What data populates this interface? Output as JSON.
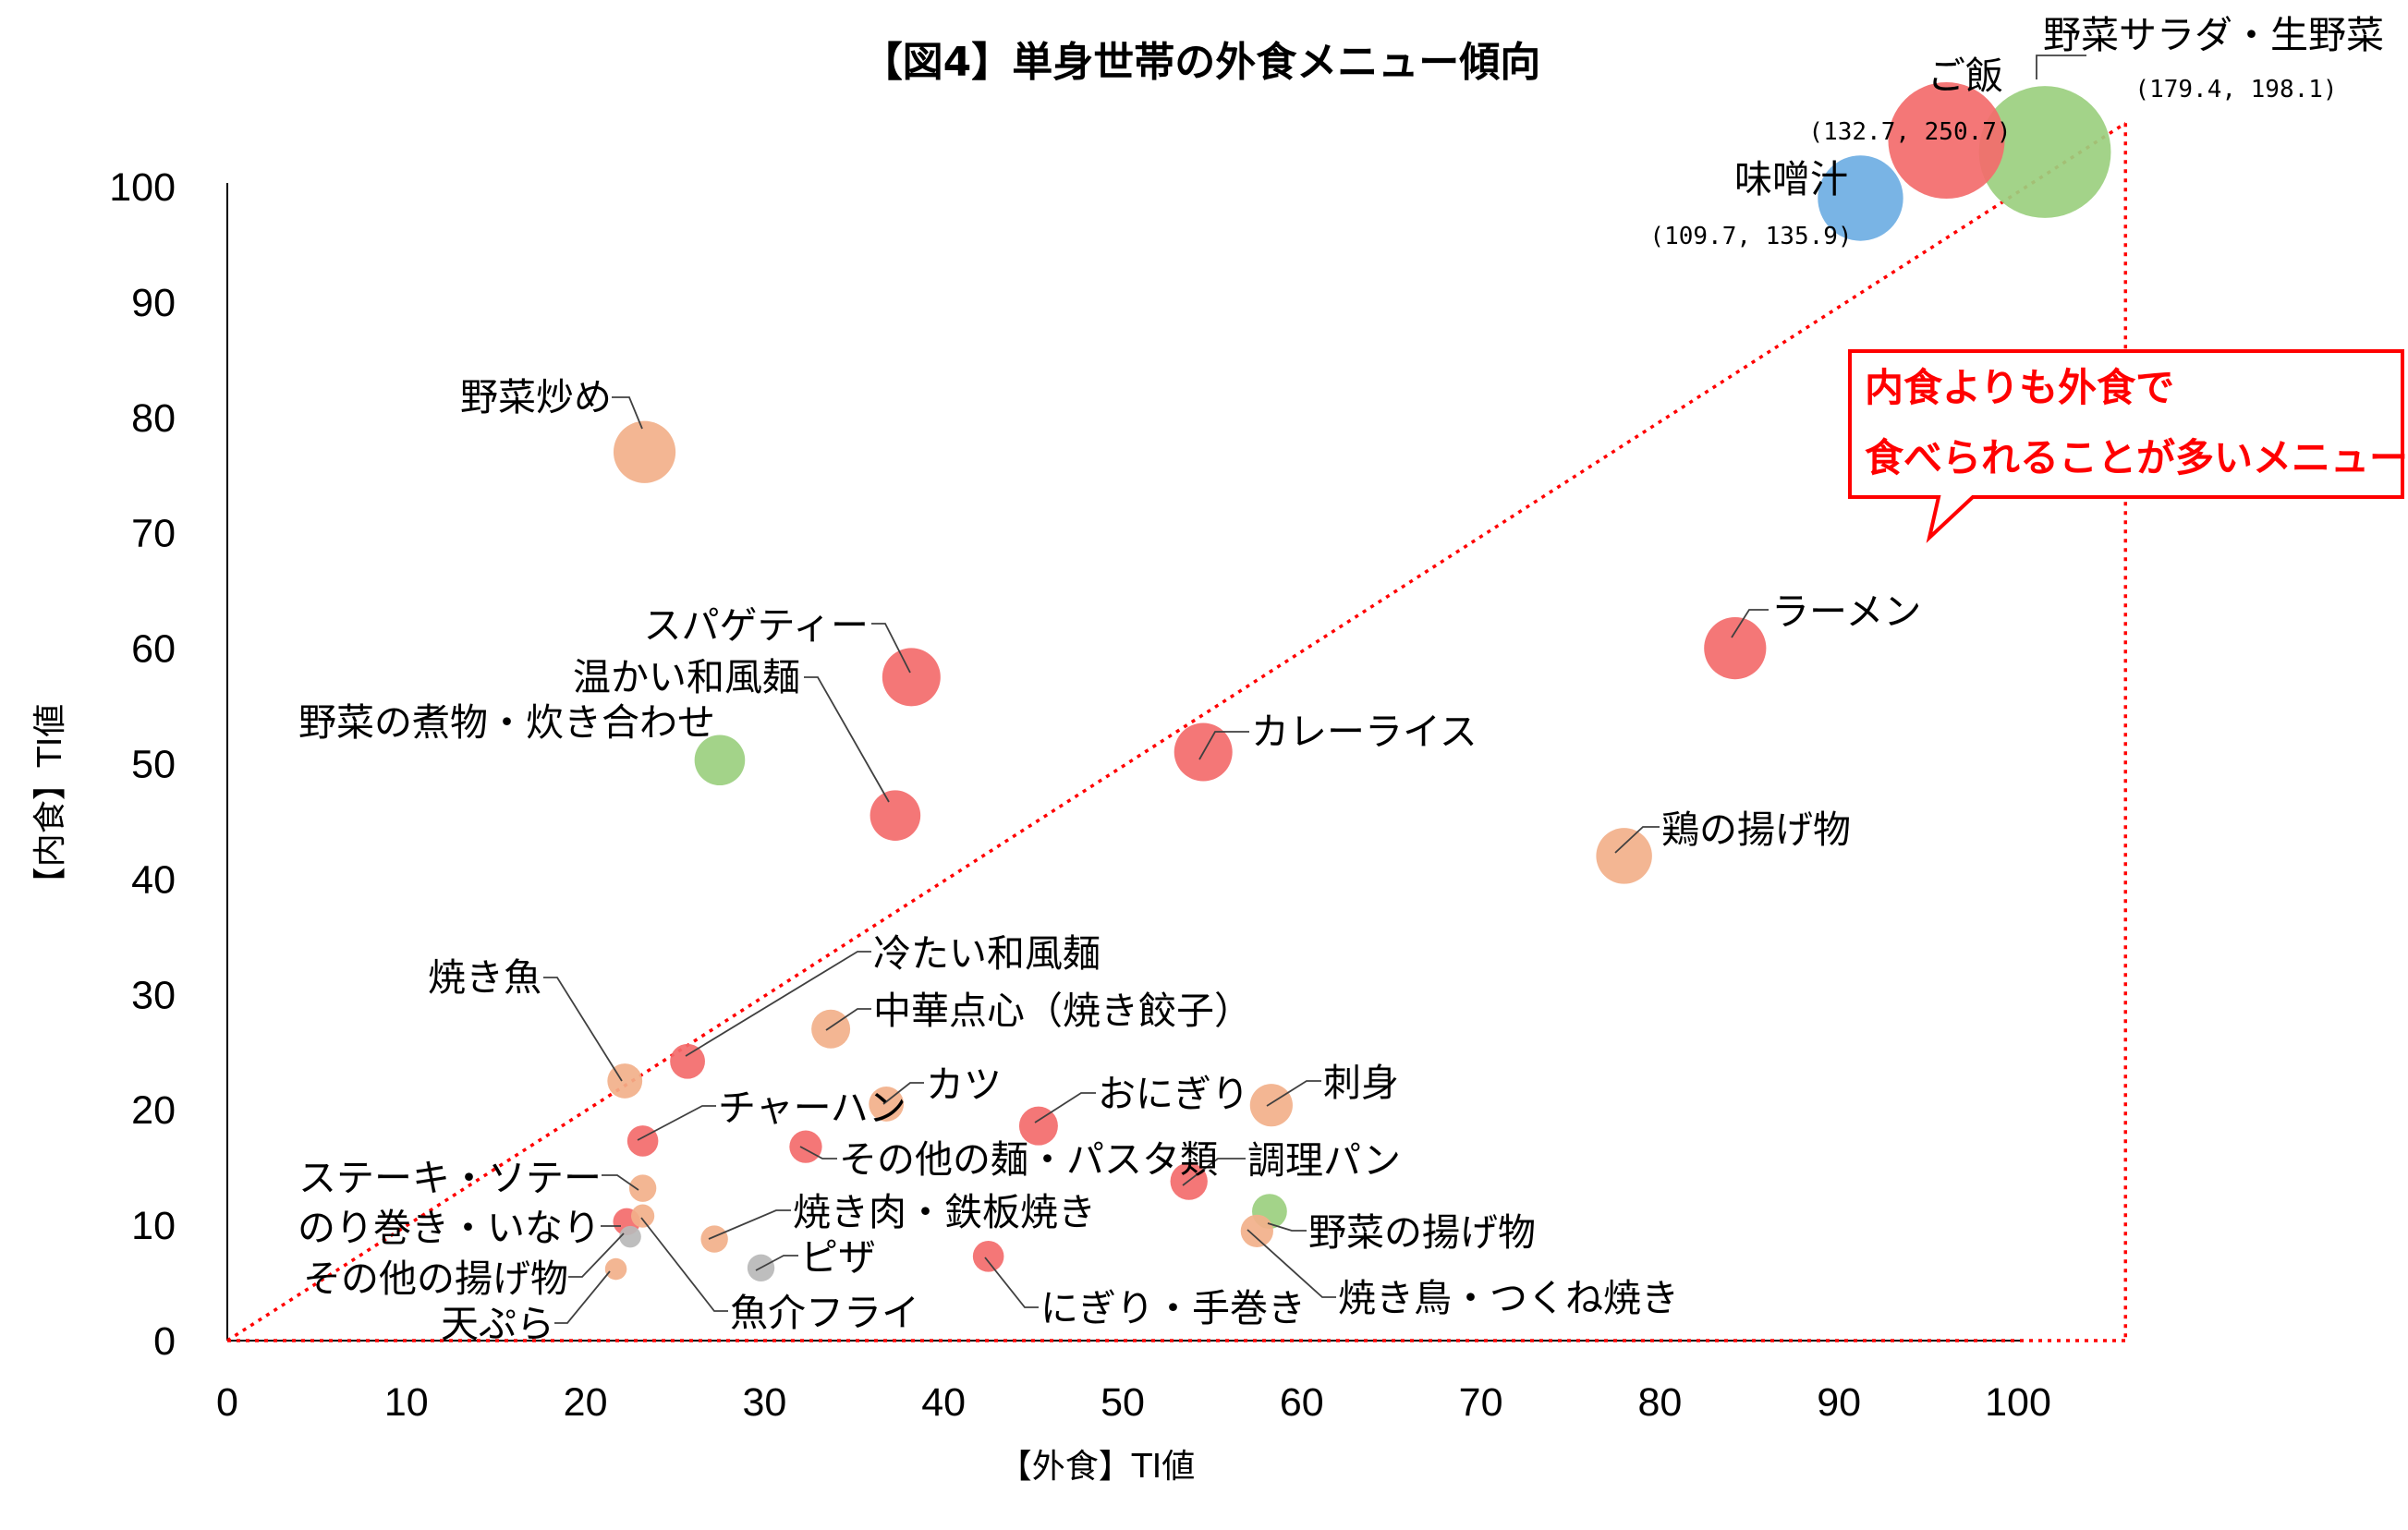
{
  "chart_data": {
    "type": "scatter",
    "title": "【図4】単身世帯の外食メニュー傾向",
    "xlabel": "【外食】TI値",
    "ylabel": "【内食】TI値",
    "xlim": [
      0,
      100
    ],
    "ylim": [
      0,
      100
    ],
    "x_ticks": [
      "0",
      "10",
      "20",
      "30",
      "40",
      "50",
      "60",
      "70",
      "80",
      "90",
      "100"
    ],
    "y_ticks": [
      "0",
      "10",
      "20",
      "30",
      "40",
      "50",
      "60",
      "70",
      "80",
      "90",
      "100"
    ],
    "grid": false,
    "legend": "none",
    "colors": {
      "red": "#f36b6b",
      "orange": "#f2b08a",
      "green": "#9bcf7f",
      "blue": "#6eaee3",
      "gray": "#b9b9b9",
      "guide": "#ff0000"
    },
    "points": [
      {
        "label": "ご飯",
        "x": 96,
        "y": 104,
        "size": 1.5,
        "color": "red",
        "coord_text": "(132.7, 250.7)"
      },
      {
        "label": "野菜サラダ・生野菜",
        "x": 101.5,
        "y": 103,
        "size": 1.7,
        "color": "green",
        "coord_text": "(179.4, 198.1)"
      },
      {
        "label": "味噌汁",
        "x": 91.2,
        "y": 99,
        "size": 1.1,
        "color": "blue",
        "coord_text": "(109.7, 135.9)"
      },
      {
        "label": "野菜炒め",
        "x": 23.3,
        "y": 77,
        "size": 0.8,
        "color": "orange"
      },
      {
        "label": "スパゲティー",
        "x": 38.2,
        "y": 57.5,
        "size": 0.75,
        "color": "red"
      },
      {
        "label": "温かい和風麺",
        "x": 37.3,
        "y": 45.5,
        "size": 0.65,
        "color": "red"
      },
      {
        "label": "野菜の煮物・炊き合わせ",
        "x": 27.5,
        "y": 50.3,
        "size": 0.65,
        "color": "green"
      },
      {
        "label": "カレーライス",
        "x": 54.5,
        "y": 51,
        "size": 0.75,
        "color": "red"
      },
      {
        "label": "ラーメン",
        "x": 84.2,
        "y": 60,
        "size": 0.8,
        "color": "red"
      },
      {
        "label": "鶏の揚げ物",
        "x": 78,
        "y": 42,
        "size": 0.72,
        "color": "orange"
      },
      {
        "label": "冷たい和風麺",
        "x": 25.7,
        "y": 24.2,
        "size": 0.45,
        "color": "red"
      },
      {
        "label": "中華点心（焼き餃子）",
        "x": 33.7,
        "y": 27,
        "size": 0.5,
        "color": "orange"
      },
      {
        "label": "焼き魚",
        "x": 22.2,
        "y": 22.5,
        "size": 0.45,
        "color": "orange"
      },
      {
        "label": "カツ",
        "x": 36.8,
        "y": 20.5,
        "size": 0.45,
        "color": "orange"
      },
      {
        "label": "おにぎり",
        "x": 45.3,
        "y": 18.6,
        "size": 0.5,
        "color": "red"
      },
      {
        "label": "刺身",
        "x": 58.3,
        "y": 20.4,
        "size": 0.55,
        "color": "orange"
      },
      {
        "label": "チャーハン",
        "x": 23.2,
        "y": 17.3,
        "size": 0.4,
        "color": "red"
      },
      {
        "label": "その他の麺・パスタ類",
        "x": 32.3,
        "y": 16.8,
        "size": 0.42,
        "color": "red"
      },
      {
        "label": "調理パン",
        "x": 53.7,
        "y": 13.8,
        "size": 0.48,
        "color": "red"
      },
      {
        "label": "ステーキ・ソテー",
        "x": 23.2,
        "y": 13.2,
        "size": 0.35,
        "color": "orange"
      },
      {
        "label": "野菜の揚げ物",
        "x": 58.2,
        "y": 11.2,
        "size": 0.45,
        "color": "green"
      },
      {
        "label": "焼き肉・鉄板焼き",
        "x": 27.2,
        "y": 8.8,
        "size": 0.35,
        "color": "orange"
      },
      {
        "label": "焼き鳥・つくね焼き",
        "x": 57.5,
        "y": 9.5,
        "size": 0.42,
        "color": "orange"
      },
      {
        "label": "のり巻き・いなり",
        "x": 22.3,
        "y": 10.3,
        "size": 0.35,
        "color": "red"
      },
      {
        "label": "魚介フライ",
        "x": 23.2,
        "y": 10.8,
        "size": 0.3,
        "color": "orange"
      },
      {
        "label": "ピザ",
        "x": 29.8,
        "y": 6.3,
        "size": 0.35,
        "color": "gray"
      },
      {
        "label": "にぎり・手巻き",
        "x": 42.5,
        "y": 7.3,
        "size": 0.4,
        "color": "red"
      },
      {
        "label": "その他の揚げ物",
        "x": 22.5,
        "y": 9.0,
        "size": 0.28,
        "color": "gray"
      },
      {
        "label": "天ぷら",
        "x": 21.7,
        "y": 6.2,
        "size": 0.28,
        "color": "orange"
      }
    ]
  },
  "callout": {
    "line1": "内食よりも外食で",
    "line2": "食べられることが多いメニュー"
  }
}
